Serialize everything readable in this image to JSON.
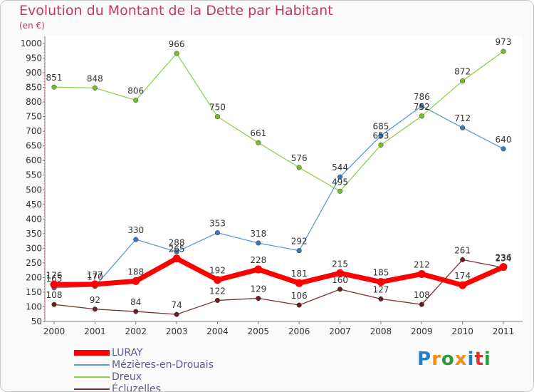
{
  "title": "Evolution du Montant de la Dette par Habitant",
  "subtitle": "(en €)",
  "logo": {
    "text": "Proxiti",
    "colors": [
      "#1e7fc8",
      "#f28c1a",
      "#2a9d3a",
      "#f28c1a",
      "#1e7fc8",
      "#e0332b",
      "#2a9d3a"
    ]
  },
  "chart_data": {
    "type": "line",
    "x": [
      "2000",
      "2001",
      "2002",
      "2003",
      "2004",
      "2005",
      "2006",
      "2007",
      "2008",
      "2009",
      "2010",
      "2011"
    ],
    "ylim": [
      50,
      1000
    ],
    "yticks": [
      50,
      100,
      150,
      200,
      250,
      300,
      350,
      400,
      450,
      500,
      550,
      600,
      650,
      700,
      750,
      800,
      850,
      900,
      950,
      1000
    ],
    "grid": false,
    "legend_position": "bottom-left",
    "series": [
      {
        "name": "Mézières-en-Drouais",
        "color": "#5b9bd5",
        "marker": "#3a78c0",
        "width": 1.3,
        "values": [
          165,
          170,
          330,
          288,
          353,
          318,
          292,
          544,
          685,
          786,
          712,
          640
        ]
      },
      {
        "name": "Dreux",
        "color": "#92d050",
        "marker": "#6fbf2e",
        "width": 1.3,
        "values": [
          851,
          848,
          806,
          966,
          750,
          661,
          576,
          495,
          653,
          752,
          872,
          973
        ]
      },
      {
        "name": "Écluzelles",
        "color": "#7a3434",
        "marker": "#6b1f1f",
        "width": 1.3,
        "values": [
          108,
          92,
          84,
          74,
          122,
          129,
          106,
          160,
          127,
          108,
          261,
          234
        ]
      },
      {
        "name": "LURAY",
        "color": "#ff0000",
        "marker": "#ff0000",
        "width": 7,
        "values": [
          176,
          177,
          188,
          265,
          192,
          228,
          181,
          215,
          185,
          212,
          174,
          236
        ]
      }
    ]
  }
}
